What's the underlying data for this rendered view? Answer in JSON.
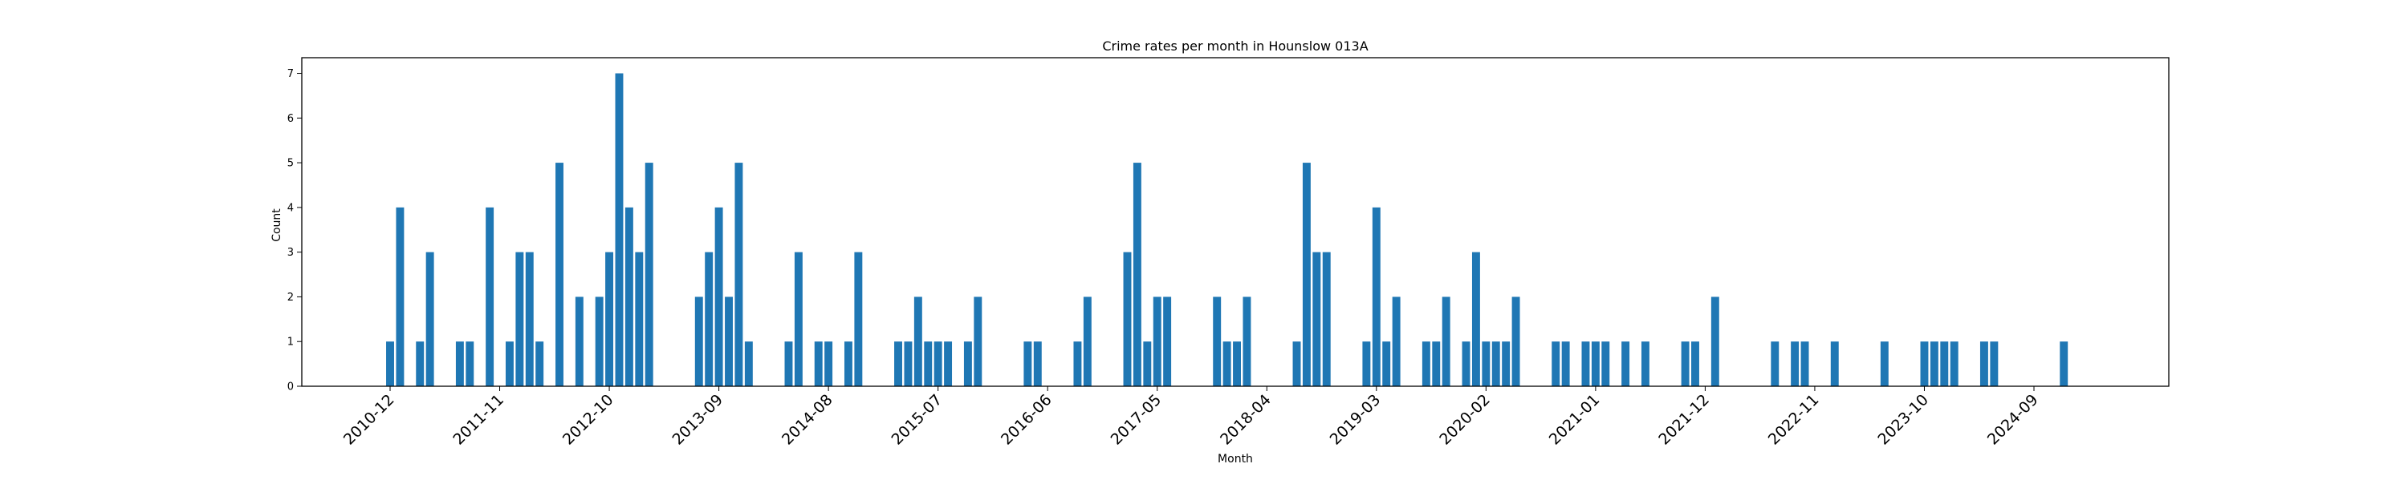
{
  "chart_data": {
    "type": "bar",
    "title": "Crime rates per month in Hounslow 013A",
    "xlabel": "Month",
    "ylabel": "Count",
    "ylim": [
      0,
      7.35
    ],
    "yticks": [
      0,
      1,
      2,
      3,
      4,
      5,
      6,
      7
    ],
    "xticks": [
      "2010-12",
      "2011-11",
      "2012-10",
      "2013-09",
      "2014-08",
      "2015-07",
      "2016-06",
      "2017-05",
      "2018-04",
      "2019-03",
      "2020-02",
      "2021-01",
      "2021-12",
      "2022-11",
      "2023-10",
      "2024-09"
    ],
    "grid": false,
    "bar_color": "#1f77b4",
    "series": [
      {
        "points": [
          [
            "2010-12",
            1
          ],
          [
            "2011-01",
            4
          ],
          [
            "2011-03",
            1
          ],
          [
            "2011-04",
            3
          ],
          [
            "2011-07",
            1
          ],
          [
            "2011-08",
            1
          ],
          [
            "2011-10",
            4
          ],
          [
            "2011-12",
            1
          ],
          [
            "2012-01",
            3
          ],
          [
            "2012-02",
            3
          ],
          [
            "2012-03",
            1
          ],
          [
            "2012-05",
            5
          ],
          [
            "2012-07",
            2
          ],
          [
            "2012-09",
            2
          ],
          [
            "2012-10",
            3
          ],
          [
            "2012-11",
            7
          ],
          [
            "2012-12",
            4
          ],
          [
            "2013-01",
            3
          ],
          [
            "2013-02",
            5
          ],
          [
            "2013-07",
            2
          ],
          [
            "2013-08",
            3
          ],
          [
            "2013-09",
            4
          ],
          [
            "2013-10",
            2
          ],
          [
            "2013-11",
            5
          ],
          [
            "2013-12",
            1
          ],
          [
            "2014-04",
            1
          ],
          [
            "2014-05",
            3
          ],
          [
            "2014-07",
            1
          ],
          [
            "2014-08",
            1
          ],
          [
            "2014-10",
            1
          ],
          [
            "2014-11",
            3
          ],
          [
            "2015-03",
            1
          ],
          [
            "2015-04",
            1
          ],
          [
            "2015-05",
            2
          ],
          [
            "2015-06",
            1
          ],
          [
            "2015-07",
            1
          ],
          [
            "2015-08",
            1
          ],
          [
            "2015-10",
            1
          ],
          [
            "2015-11",
            2
          ],
          [
            "2016-04",
            1
          ],
          [
            "2016-05",
            1
          ],
          [
            "2016-09",
            1
          ],
          [
            "2016-10",
            2
          ],
          [
            "2017-02",
            3
          ],
          [
            "2017-03",
            5
          ],
          [
            "2017-04",
            1
          ],
          [
            "2017-05",
            2
          ],
          [
            "2017-06",
            2
          ],
          [
            "2017-11",
            2
          ],
          [
            "2017-12",
            1
          ],
          [
            "2018-01",
            1
          ],
          [
            "2018-02",
            2
          ],
          [
            "2018-07",
            1
          ],
          [
            "2018-08",
            5
          ],
          [
            "2018-09",
            3
          ],
          [
            "2018-10",
            3
          ],
          [
            "2019-02",
            1
          ],
          [
            "2019-03",
            4
          ],
          [
            "2019-04",
            1
          ],
          [
            "2019-05",
            2
          ],
          [
            "2019-08",
            1
          ],
          [
            "2019-09",
            1
          ],
          [
            "2019-10",
            2
          ],
          [
            "2019-12",
            1
          ],
          [
            "2020-01",
            3
          ],
          [
            "2020-02",
            1
          ],
          [
            "2020-03",
            1
          ],
          [
            "2020-04",
            1
          ],
          [
            "2020-05",
            2
          ],
          [
            "2020-09",
            1
          ],
          [
            "2020-10",
            1
          ],
          [
            "2020-12",
            1
          ],
          [
            "2021-01",
            1
          ],
          [
            "2021-02",
            1
          ],
          [
            "2021-04",
            1
          ],
          [
            "2021-06",
            1
          ],
          [
            "2021-10",
            1
          ],
          [
            "2021-11",
            1
          ],
          [
            "2022-01",
            2
          ],
          [
            "2022-07",
            1
          ],
          [
            "2022-09",
            1
          ],
          [
            "2022-10",
            1
          ],
          [
            "2023-01",
            1
          ],
          [
            "2023-06",
            1
          ],
          [
            "2023-10",
            1
          ],
          [
            "2023-11",
            1
          ],
          [
            "2023-12",
            1
          ],
          [
            "2024-01",
            1
          ],
          [
            "2024-04",
            1
          ],
          [
            "2024-05",
            1
          ],
          [
            "2024-12",
            1
          ]
        ]
      }
    ]
  }
}
